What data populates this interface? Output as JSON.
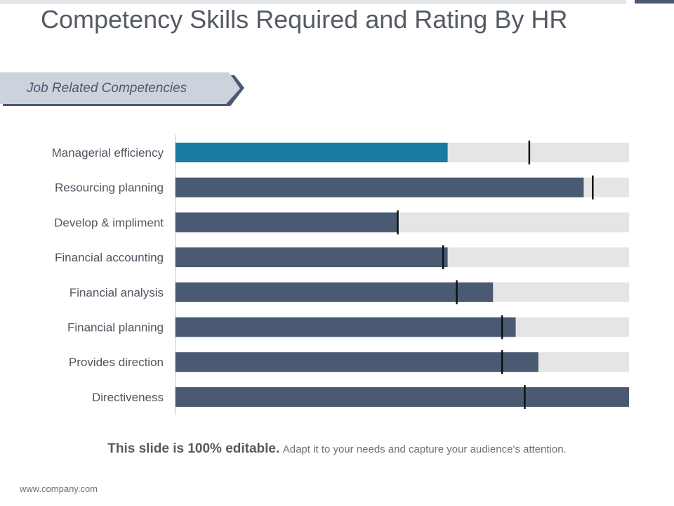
{
  "title": "Competency Skills Required and Rating By HR",
  "banner": {
    "label": "Job Related Competencies"
  },
  "colors": {
    "highlight_bar": "#1b7aa1",
    "bar": "#4a5a72",
    "track": "#e5e5e5",
    "marker": "#111111",
    "axis": "#c8c8c8"
  },
  "chart_data": {
    "type": "bar",
    "orientation": "horizontal",
    "xlim": [
      0,
      100
    ],
    "grid": false,
    "categories": [
      "Managerial efficiency",
      "Resourcing planning",
      "Develop & impliment",
      "Financial accounting",
      "Financial analysis",
      "Financial planning",
      "Provides direction",
      "Directiveness"
    ],
    "values": [
      60,
      90,
      49,
      60,
      70,
      75,
      80,
      100
    ],
    "markers": [
      78,
      92,
      49,
      59,
      62,
      72,
      72,
      77
    ],
    "highlight_index": 0
  },
  "footer": {
    "strong": "This slide is 100% editable.",
    "light": "Adapt it to your needs and capture your audience's attention."
  },
  "website": "www.company.com"
}
